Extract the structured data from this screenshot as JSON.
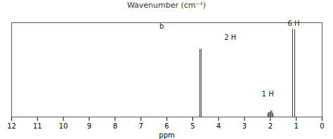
{
  "chart_data": {
    "type": "stem",
    "title": "Wavenumber (cm⁻¹)",
    "xlabel": "ppm",
    "x": [
      4.675,
      4.725,
      1.06,
      1.14,
      1.9,
      1.94,
      1.98,
      2.02,
      2.06,
      2.1
    ],
    "values": [
      0.72,
      0.72,
      0.93,
      0.93,
      0.04,
      0.06,
      0.07,
      0.05,
      0.05,
      0.04
    ],
    "color": "#333333",
    "xlim": [
      12,
      0
    ],
    "xticks": [
      0,
      1,
      2,
      3,
      4,
      5,
      6,
      7,
      8,
      9,
      10,
      11,
      12
    ],
    "ylim": [
      0,
      1.0
    ],
    "tick_labels": "x",
    "annotations": [
      {
        "text": "2 H",
        "x": 3.55,
        "y": 0.82
      },
      {
        "text": "1 H",
        "x": 2.1,
        "y": 0.22
      },
      {
        "text": "6 H",
        "x": 1.1,
        "y": 0.97
      },
      {
        "text": "b",
        "x": 6.2,
        "y": 0.94
      }
    ]
  }
}
